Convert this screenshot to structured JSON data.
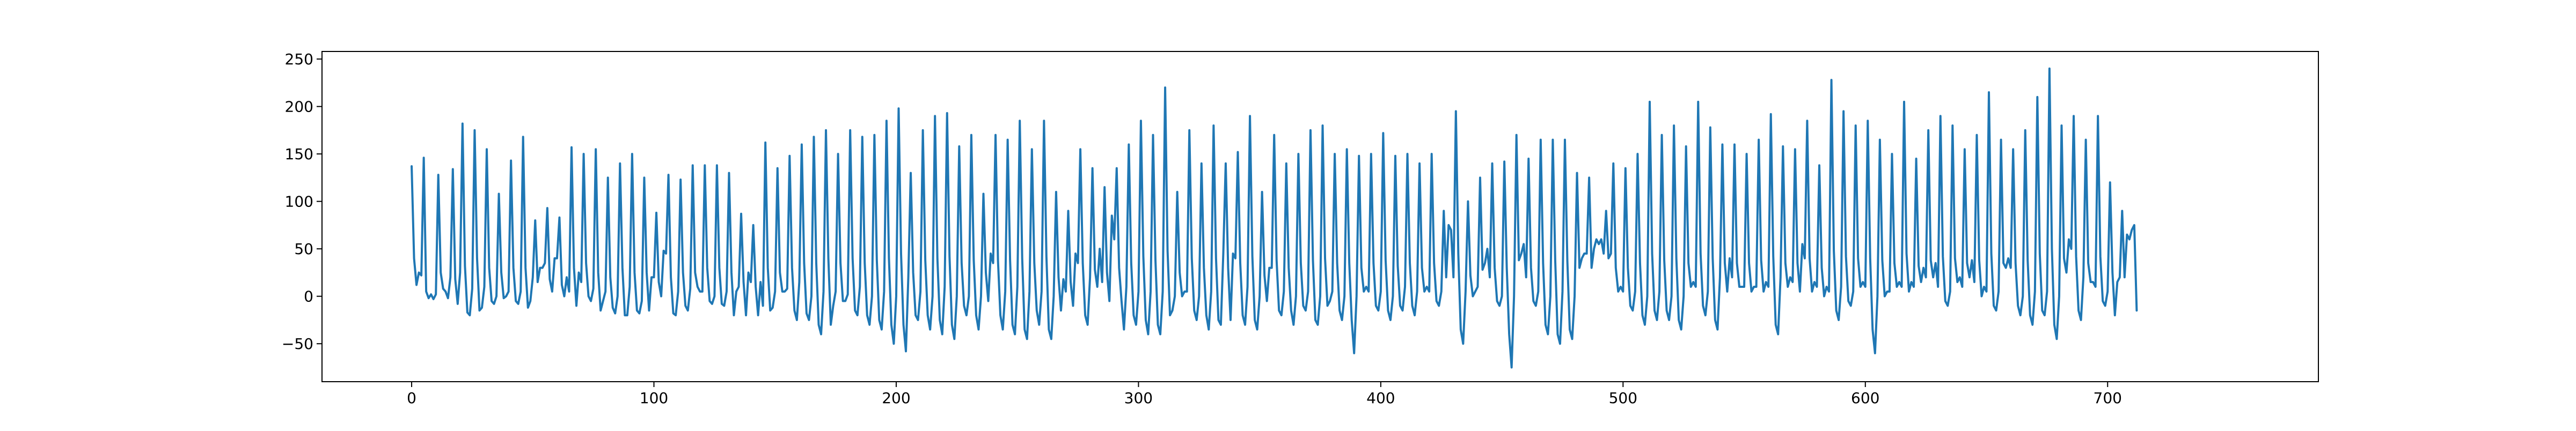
{
  "chart_data": {
    "type": "line",
    "title": "",
    "xlabel": "",
    "ylabel": "",
    "xlim": [
      -37,
      787
    ],
    "ylim": [
      -90,
      258
    ],
    "xticks": [
      0,
      100,
      200,
      300,
      400,
      500,
      600,
      700
    ],
    "yticks": [
      -50,
      0,
      50,
      100,
      150,
      200,
      250
    ],
    "grid": false,
    "legend": "none",
    "line_color": "#1f77b4",
    "series": [
      {
        "x_start": 0,
        "x_step": 1,
        "values": [
          137,
          40,
          12,
          25,
          22,
          146,
          5,
          -2,
          2,
          -3,
          2,
          128,
          25,
          8,
          5,
          -2,
          20,
          134,
          18,
          -8,
          25,
          182,
          32,
          -17,
          -20,
          8,
          175,
          40,
          -15,
          -12,
          10,
          155,
          30,
          -5,
          -8,
          0,
          108,
          25,
          -2,
          0,
          5,
          143,
          30,
          -5,
          -8,
          5,
          168,
          30,
          -12,
          -5,
          20,
          80,
          15,
          30,
          30,
          35,
          93,
          18,
          5,
          40,
          40,
          83,
          12,
          0,
          20,
          5,
          157,
          30,
          -10,
          25,
          15,
          150,
          35,
          0,
          -5,
          8,
          155,
          25,
          -15,
          -5,
          5,
          125,
          20,
          -12,
          -18,
          0,
          140,
          30,
          -20,
          -20,
          10,
          150,
          25,
          -15,
          -18,
          -5,
          125,
          25,
          -15,
          20,
          20,
          88,
          15,
          0,
          48,
          45,
          128,
          20,
          -18,
          -20,
          5,
          123,
          25,
          -10,
          -15,
          8,
          138,
          25,
          10,
          5,
          5,
          138,
          30,
          -5,
          -8,
          0,
          138,
          30,
          -8,
          -10,
          5,
          130,
          25,
          -20,
          5,
          10,
          87,
          15,
          -20,
          25,
          15,
          75,
          10,
          -20,
          15,
          -10,
          162,
          30,
          -15,
          -12,
          5,
          135,
          25,
          5,
          5,
          8,
          148,
          30,
          -15,
          -25,
          15,
          160,
          35,
          -18,
          -25,
          0,
          168,
          35,
          -30,
          -40,
          5,
          175,
          40,
          -30,
          -10,
          5,
          150,
          35,
          -5,
          -5,
          2,
          175,
          40,
          -15,
          -20,
          10,
          168,
          35,
          -20,
          -30,
          0,
          170,
          38,
          -25,
          -35,
          5,
          185,
          40,
          -30,
          -50,
          0,
          198,
          45,
          -30,
          -58,
          20,
          130,
          25,
          -20,
          -25,
          5,
          175,
          38,
          -20,
          -35,
          0,
          190,
          40,
          -25,
          -40,
          10,
          193,
          42,
          -30,
          -45,
          0,
          158,
          35,
          -10,
          -20,
          0,
          170,
          38,
          -20,
          -35,
          0,
          108,
          25,
          -5,
          45,
          35,
          170,
          38,
          -20,
          -35,
          5,
          165,
          38,
          -30,
          -40,
          10,
          185,
          40,
          -35,
          -45,
          5,
          155,
          35,
          -15,
          -30,
          5,
          185,
          42,
          -35,
          -45,
          0,
          110,
          20,
          -15,
          18,
          5,
          90,
          15,
          -10,
          45,
          35,
          155,
          35,
          -20,
          -30,
          20,
          135,
          28,
          10,
          50,
          15,
          115,
          25,
          -5,
          85,
          60,
          135,
          30,
          -5,
          -35,
          10,
          160,
          35,
          -20,
          -30,
          5,
          185,
          42,
          -25,
          -40,
          5,
          170,
          38,
          -30,
          -40,
          5,
          220,
          48,
          -20,
          -15,
          0,
          110,
          25,
          0,
          5,
          5,
          175,
          40,
          -15,
          -25,
          0,
          140,
          30,
          -20,
          -35,
          5,
          180,
          40,
          -25,
          -30,
          45,
          140,
          30,
          -25,
          45,
          40,
          152,
          35,
          -20,
          -30,
          10,
          190,
          42,
          -25,
          -35,
          0,
          110,
          22,
          -5,
          30,
          30,
          170,
          38,
          -15,
          -20,
          5,
          140,
          30,
          -15,
          -30,
          0,
          150,
          35,
          -10,
          -15,
          5,
          175,
          38,
          -25,
          -30,
          0,
          180,
          40,
          -10,
          -5,
          5,
          150,
          35,
          -15,
          -25,
          0,
          155,
          35,
          -25,
          -60,
          0,
          148,
          30,
          5,
          10,
          5,
          150,
          35,
          -10,
          -15,
          5,
          172,
          38,
          -15,
          -25,
          0,
          148,
          32,
          -10,
          -15,
          10,
          150,
          35,
          -10,
          -20,
          5,
          140,
          30,
          5,
          10,
          5,
          150,
          35,
          -5,
          -10,
          5,
          90,
          20,
          75,
          70,
          20,
          195,
          45,
          -35,
          -50,
          5,
          100,
          22,
          0,
          5,
          10,
          125,
          28,
          35,
          50,
          20,
          140,
          30,
          -5,
          -10,
          0,
          142,
          30,
          -40,
          -75,
          0,
          170,
          38,
          45,
          55,
          20,
          145,
          30,
          -5,
          -10,
          5,
          165,
          35,
          -30,
          -40,
          0,
          165,
          38,
          -40,
          -50,
          5,
          165,
          38,
          -35,
          -45,
          0,
          130,
          30,
          40,
          45,
          45,
          125,
          30,
          50,
          60,
          55,
          60,
          45,
          90,
          40,
          45,
          140,
          30,
          5,
          10,
          5,
          135,
          30,
          -10,
          -15,
          5,
          150,
          35,
          -20,
          -30,
          0,
          205,
          45,
          -15,
          -25,
          5,
          170,
          38,
          -15,
          -25,
          0,
          180,
          40,
          -25,
          -35,
          0,
          158,
          35,
          10,
          15,
          10,
          205,
          45,
          -10,
          -20,
          5,
          178,
          40,
          -25,
          -35,
          20,
          160,
          35,
          5,
          40,
          20,
          160,
          35,
          10,
          10,
          10,
          150,
          35,
          5,
          10,
          10,
          165,
          38,
          5,
          15,
          10,
          192,
          42,
          -30,
          -40,
          20,
          158,
          35,
          10,
          20,
          15,
          155,
          35,
          5,
          55,
          40,
          185,
          40,
          5,
          15,
          10,
          138,
          30,
          0,
          10,
          5,
          228,
          48,
          -15,
          -25,
          10,
          195,
          42,
          -5,
          -10,
          5,
          180,
          40,
          10,
          15,
          10,
          185,
          40,
          -35,
          -60,
          0,
          165,
          38,
          0,
          5,
          5,
          150,
          35,
          10,
          15,
          10,
          205,
          45,
          5,
          15,
          10,
          145,
          32,
          15,
          30,
          20,
          175,
          38,
          20,
          35,
          10,
          190,
          42,
          -5,
          -10,
          5,
          180,
          40,
          15,
          20,
          10,
          155,
          35,
          20,
          38,
          15,
          170,
          38,
          0,
          10,
          5,
          215,
          45,
          -10,
          -15,
          5,
          165,
          35,
          30,
          40,
          30,
          155,
          35,
          -10,
          -20,
          0,
          175,
          38,
          -20,
          -30,
          5,
          210,
          45,
          -15,
          -20,
          5,
          240,
          50,
          -30,
          -45,
          0,
          180,
          40,
          25,
          60,
          50,
          190,
          42,
          -15,
          -25,
          20,
          165,
          35,
          15,
          15,
          10,
          190,
          42,
          -5,
          -10,
          5,
          120,
          25,
          -20,
          15,
          20,
          90,
          20,
          65,
          60,
          70,
          75,
          -15
        ]
      }
    ]
  }
}
